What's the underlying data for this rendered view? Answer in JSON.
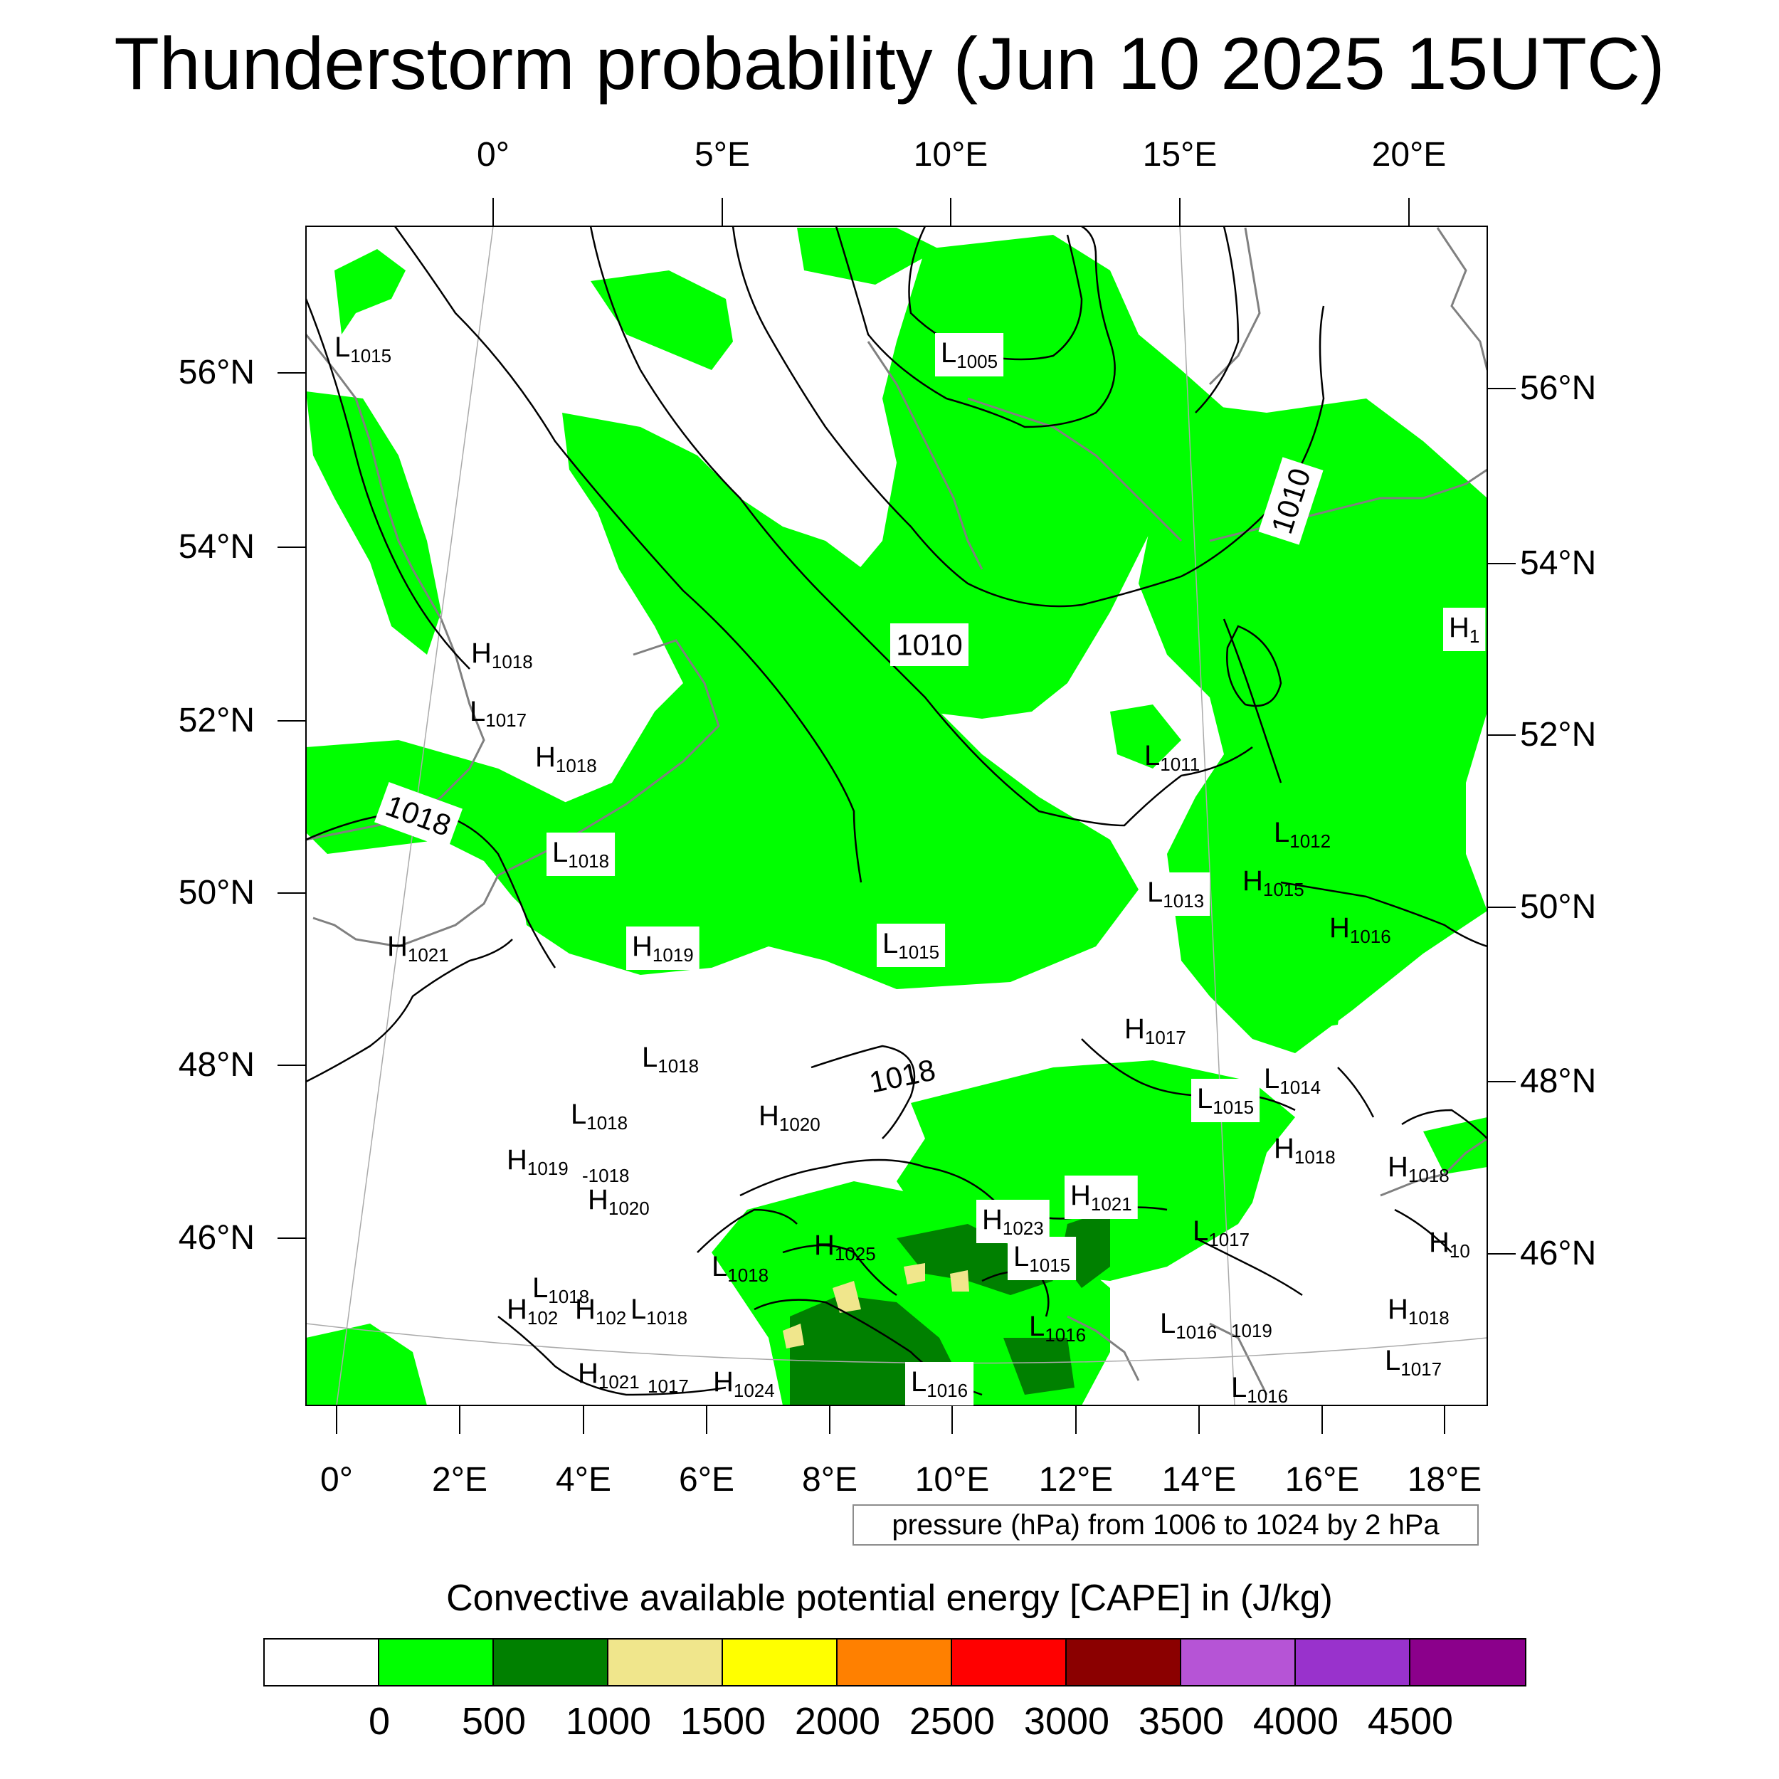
{
  "title": "Thunderstorm probability (Jun 10 2025 15UTC)",
  "top_lon_labels": [
    "0°",
    "5°E",
    "10°E",
    "15°E",
    "20°E"
  ],
  "bottom_lon_labels": [
    "0°",
    "2°E",
    "4°E",
    "6°E",
    "8°E",
    "10°E",
    "12°E",
    "14°E",
    "16°E",
    "18°E"
  ],
  "left_lat_labels": [
    "56°N",
    "54°N",
    "52°N",
    "50°N",
    "48°N",
    "46°N"
  ],
  "right_lat_labels": [
    "56°N",
    "54°N",
    "52°N",
    "50°N",
    "48°N",
    "46°N"
  ],
  "isobar_labels": [
    "1010",
    "1010",
    "1018",
    "1018"
  ],
  "pressure_centers": [
    {
      "t": "L",
      "v": "1015"
    },
    {
      "t": "L",
      "v": "1005"
    },
    {
      "t": "H",
      "v": "1018"
    },
    {
      "t": "L",
      "v": "1017"
    },
    {
      "t": "H",
      "v": "1018"
    },
    {
      "t": "L",
      "v": "1018"
    },
    {
      "t": "H",
      "v": "1021"
    },
    {
      "t": "H",
      "v": "1019"
    },
    {
      "t": "L",
      "v": "1015"
    },
    {
      "t": "L",
      "v": "1011"
    },
    {
      "t": "L",
      "v": "1012"
    },
    {
      "t": "L",
      "v": "1013"
    },
    {
      "t": "H",
      "v": "1015"
    },
    {
      "t": "H",
      "v": "1016"
    },
    {
      "t": "H",
      "v": "1"
    },
    {
      "t": "H",
      "v": "1017"
    },
    {
      "t": "L",
      "v": "1014"
    },
    {
      "t": "L",
      "v": "1015"
    },
    {
      "t": "L",
      "v": "1018"
    },
    {
      "t": "L",
      "v": "1018"
    },
    {
      "t": "H",
      "v": "1020"
    },
    {
      "t": "H",
      "v": "1019"
    },
    {
      "t": "",
      "v": "-1018"
    },
    {
      "t": "H",
      "v": "1020"
    },
    {
      "t": "H",
      "v": "1018"
    },
    {
      "t": "H",
      "v": "1018"
    },
    {
      "t": "H",
      "v": "1021"
    },
    {
      "t": "H",
      "v": "1023"
    },
    {
      "t": "L",
      "v": "1015"
    },
    {
      "t": "L",
      "v": "1017"
    },
    {
      "t": "H",
      "v": "1025"
    },
    {
      "t": "L",
      "v": "1018"
    },
    {
      "t": "L",
      "v": "1018"
    },
    {
      "t": "H",
      "v": "102"
    },
    {
      "t": "H",
      "v": "102"
    },
    {
      "t": "L",
      "v": "1018"
    },
    {
      "t": "L",
      "v": "1016"
    },
    {
      "t": "L",
      "v": "1016"
    },
    {
      "t": "",
      "v": "1019"
    },
    {
      "t": "H",
      "v": "1021"
    },
    {
      "t": "",
      "v": "1017"
    },
    {
      "t": "H",
      "v": "1024"
    },
    {
      "t": "L",
      "v": "1016"
    },
    {
      "t": "L",
      "v": "1016"
    },
    {
      "t": "H",
      "v": "10"
    },
    {
      "t": "H",
      "v": "1018"
    },
    {
      "t": "L",
      "v": "1017"
    }
  ],
  "pressure_info": "pressure (hPa) from 1006 to 1024 by 2 hPa",
  "colorbar": {
    "title": "Convective available potential energy [CAPE] in (J/kg)",
    "colors": [
      "#ffffff",
      "#00ff00",
      "#008000",
      "#f0e68c",
      "#ffff00",
      "#ff8000",
      "#ff0000",
      "#8b0000",
      "#b654d6",
      "#9932cc",
      "#8b008b"
    ],
    "ticks": [
      "0",
      "500",
      "1000",
      "1500",
      "2000",
      "2500",
      "3000",
      "3500",
      "4000",
      "4500"
    ]
  },
  "colors": {
    "cape_low": "#00ff00",
    "cape_mid": "#008000",
    "cape_high": "#f0e68c",
    "coastline": "#808080",
    "isobar": "#000000"
  }
}
